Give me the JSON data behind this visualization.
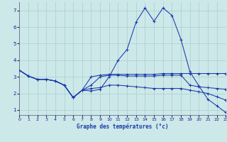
{
  "background_color": "#cce8e8",
  "grid_color": "#aacece",
  "line_color": "#1a3aab",
  "xlim": [
    0,
    23
  ],
  "ylim": [
    0.7,
    7.5
  ],
  "xticks": [
    0,
    1,
    2,
    3,
    4,
    5,
    6,
    7,
    8,
    9,
    10,
    11,
    12,
    13,
    14,
    15,
    16,
    17,
    18,
    19,
    20,
    21,
    22,
    23
  ],
  "yticks": [
    1,
    2,
    3,
    4,
    5,
    6,
    7
  ],
  "xlabel_text": "Graphe des températures (°c)",
  "series": [
    [
      3.4,
      3.05,
      2.85,
      2.85,
      2.75,
      2.5,
      1.75,
      2.2,
      2.15,
      2.25,
      3.0,
      4.0,
      4.65,
      6.3,
      7.15,
      6.35,
      7.15,
      6.7,
      5.25,
      3.3,
      2.45,
      1.65,
      1.25,
      0.85
    ],
    [
      3.4,
      3.05,
      2.85,
      2.85,
      2.75,
      2.5,
      1.75,
      2.2,
      3.0,
      3.1,
      3.15,
      3.15,
      3.15,
      3.15,
      3.15,
      3.15,
      3.2,
      3.2,
      3.2,
      3.2,
      3.2,
      3.2,
      3.2,
      3.2
    ],
    [
      3.4,
      3.05,
      2.85,
      2.85,
      2.75,
      2.5,
      1.75,
      2.2,
      2.5,
      3.0,
      3.1,
      3.1,
      3.05,
      3.05,
      3.05,
      3.05,
      3.1,
      3.1,
      3.1,
      2.5,
      2.4,
      2.35,
      2.3,
      2.25
    ],
    [
      3.4,
      3.05,
      2.85,
      2.85,
      2.75,
      2.5,
      1.75,
      2.2,
      2.3,
      2.35,
      2.5,
      2.5,
      2.45,
      2.4,
      2.35,
      2.3,
      2.3,
      2.3,
      2.3,
      2.2,
      2.1,
      2.0,
      1.8,
      1.6
    ]
  ]
}
